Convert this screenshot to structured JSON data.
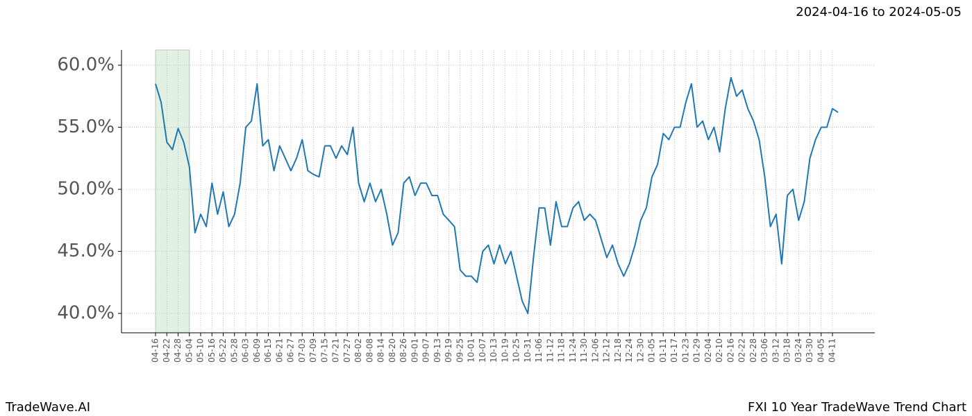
{
  "chart_data": {
    "type": "line",
    "subtitle": "2024-04-16 to 2024-05-05",
    "footer_left": "TradeWave.AI",
    "title": "FXI 10 Year TradeWave Trend Chart",
    "shaded_categories": [
      "04-16",
      "05-04"
    ],
    "shade_color": "#e3f1e3",
    "grid": true,
    "categories": [
      "04-16",
      null,
      "04-22",
      null,
      "04-28",
      null,
      "05-04",
      null,
      "05-10",
      null,
      "05-16",
      null,
      "05-22",
      null,
      "05-28",
      null,
      "06-03",
      null,
      "06-09",
      null,
      "06-15",
      null,
      "06-21",
      null,
      "06-27",
      null,
      "07-03",
      null,
      "07-09",
      null,
      "07-15",
      null,
      "07-21",
      null,
      "07-27",
      null,
      "08-02",
      null,
      "08-08",
      null,
      "08-14",
      null,
      "08-20",
      null,
      "08-26",
      null,
      "09-01",
      null,
      "09-07",
      null,
      "09-13",
      null,
      "09-19",
      null,
      "09-25",
      null,
      "10-01",
      null,
      "10-07",
      null,
      "10-13",
      null,
      "10-19",
      null,
      "10-25",
      null,
      "10-31",
      null,
      "11-06",
      null,
      "11-12",
      null,
      "11-18",
      null,
      "11-24",
      null,
      "11-30",
      null,
      "12-06",
      null,
      "12-12",
      null,
      "12-18",
      null,
      "12-24",
      null,
      "12-30",
      null,
      "01-05",
      null,
      "01-11",
      null,
      "01-17",
      null,
      "01-23",
      null,
      "01-29",
      null,
      "02-04",
      null,
      "02-10",
      null,
      "02-16",
      null,
      "02-22",
      null,
      "02-28",
      null,
      "03-06",
      null,
      "03-12",
      null,
      "03-18",
      null,
      "03-24",
      null,
      "03-30",
      null,
      "04-05",
      null,
      "04-11",
      null
    ],
    "series": [
      {
        "name": "FXI",
        "color": "#1f77b4",
        "values": [
          58.5,
          57.0,
          53.8,
          53.2,
          54.9,
          53.8,
          51.8,
          46.5,
          48.0,
          47.0,
          50.5,
          48.0,
          49.8,
          47.0,
          48.0,
          50.5,
          55.0,
          55.5,
          58.5,
          53.5,
          54.0,
          51.5,
          53.5,
          52.5,
          51.5,
          52.5,
          54.0,
          51.5,
          51.2,
          51.0,
          53.5,
          53.5,
          52.5,
          53.5,
          52.8,
          55.0,
          50.5,
          49.0,
          50.5,
          49.0,
          50.0,
          48.0,
          45.5,
          46.5,
          50.5,
          51.0,
          49.5,
          50.5,
          50.5,
          49.5,
          49.5,
          48.0,
          47.5,
          47.0,
          43.5,
          43.0,
          43.0,
          42.5,
          45.0,
          45.5,
          44.0,
          45.5,
          44.0,
          45.0,
          43.0,
          41.0,
          40.0,
          44.5,
          48.5,
          48.5,
          45.5,
          49.0,
          47.0,
          47.0,
          48.5,
          49.0,
          47.5,
          48.0,
          47.5,
          46.0,
          44.5,
          45.5,
          44.0,
          43.0,
          44.0,
          45.5,
          47.5,
          48.5,
          51.0,
          52.0,
          54.5,
          54.0,
          55.0,
          55.0,
          57.0,
          58.5,
          55.0,
          55.5,
          54.0,
          55.0,
          53.0,
          56.5,
          59.0,
          57.5,
          58.0,
          56.5,
          55.5,
          54.0,
          51.0,
          47.0,
          48.0,
          44.0,
          49.5,
          50.0,
          47.5,
          49.0,
          52.5,
          54.0,
          55.0,
          55.0,
          56.5,
          56.2
        ]
      }
    ],
    "ylim": [
      38.44,
      61.23
    ],
    "yticks": [
      {
        "value": 40,
        "label": "40.0%"
      },
      {
        "value": 45,
        "label": "45.0%"
      },
      {
        "value": 50,
        "label": "50.0%"
      },
      {
        "value": 55,
        "label": "55.0%"
      },
      {
        "value": 60,
        "label": "60.0%"
      }
    ]
  }
}
